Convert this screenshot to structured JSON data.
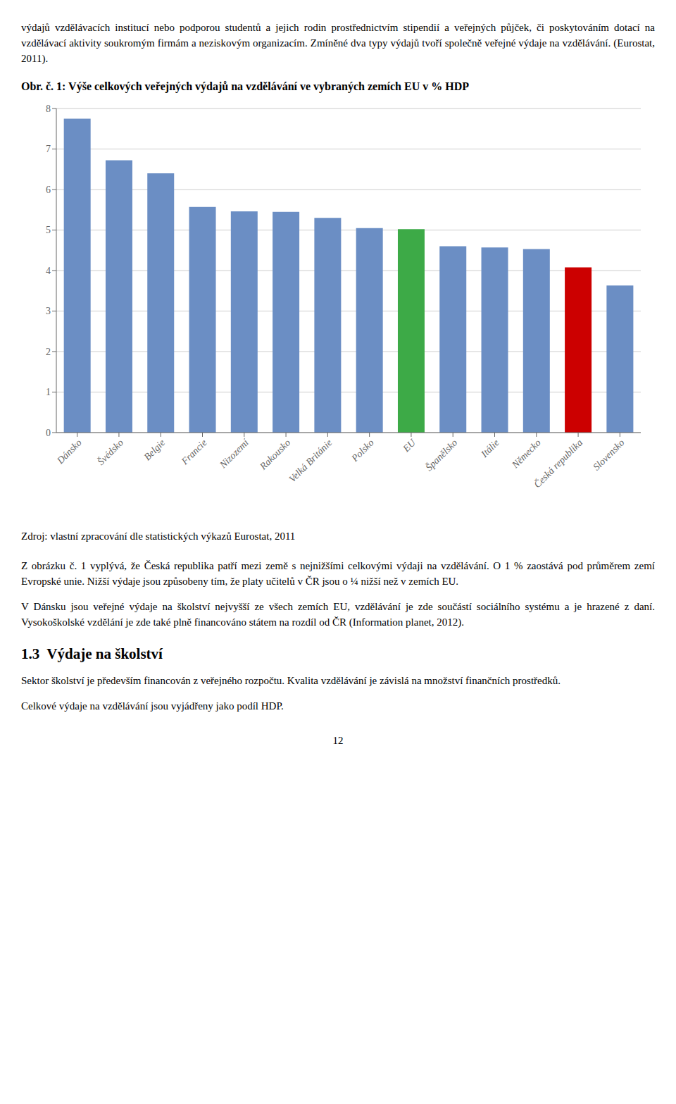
{
  "chart_data": {
    "type": "bar",
    "title": "Obr. č. 1: Výše celkových veřejných výdajů na vzdělávání ve vybraných zemích EU v % HDP",
    "categories": [
      "Dánsko",
      "Švédsko",
      "Belgie",
      "Francie",
      "Nizozemí",
      "Rakousko",
      "Velká Británie",
      "Polsko",
      "EU",
      "Španělsko",
      "Itálie",
      "Německo",
      "Česká republika",
      "Slovensko"
    ],
    "values": [
      7.75,
      6.72,
      6.4,
      5.57,
      5.46,
      5.45,
      5.3,
      5.05,
      5.02,
      4.6,
      4.57,
      4.53,
      4.08,
      3.63
    ],
    "colors": [
      "#6B8EC4",
      "#6B8EC4",
      "#6B8EC4",
      "#6B8EC4",
      "#6B8EC4",
      "#6B8EC4",
      "#6B8EC4",
      "#6B8EC4",
      "#3DAA47",
      "#6B8EC4",
      "#6B8EC4",
      "#6B8EC4",
      "#CC0000",
      "#6B8EC4"
    ],
    "ylim": [
      0,
      8
    ],
    "yticks": [
      0,
      1,
      2,
      3,
      4,
      5,
      6,
      7,
      8
    ],
    "grid": true
  },
  "text_before": [
    "výdajů vzdělávacích institucí nebo podporou studentů a jejich rodin prostřednictvím stipendií a veřejných půjček, či poskytováním dotací na vzdělávací aktivity soukromým firmám a neziskovým organizacím. Zmíněné dva typy výdajů tvoří společně veřejné výdaje na vzdělávání. (Eurostat, 2011)."
  ],
  "source": "Zdroj: vlastní zpracování dle statistických výkazů Eurostat, 2011",
  "text_after": [
    "Z obrázku č. 1 vyplývá, že Česká republika patří mezi země s nejnižšími celkovými výdaji na vzdělávání. O 1 % zaostává pod průměrem zemí Evropské unie. Nižší výdaje jsou způsobeny tím, že platy učitelů v ČR jsou o ¼ nižší než v zemích EU.",
    "V Dánsku jsou veřejné výdaje na školství nejvyšší ze všech zemích EU, vzdělávání je zde součástí sociálního systému a je hrazené z daní. Vysokoškolské vzdělání je zde také plně financováno státem na rozdíl od ČR (Information planet, 2012)."
  ],
  "heading": "1.3  Výdaje na školství",
  "text_after_heading": [
    "Sektor školství je především financován z  veřejného rozpočtu. Kvalita vzdělávání je závislá na množství finančních prostředků.",
    "Celkové výdaje na vzdělávání jsou vyjádřeny jako podíl HDP."
  ],
  "page_number": "12"
}
